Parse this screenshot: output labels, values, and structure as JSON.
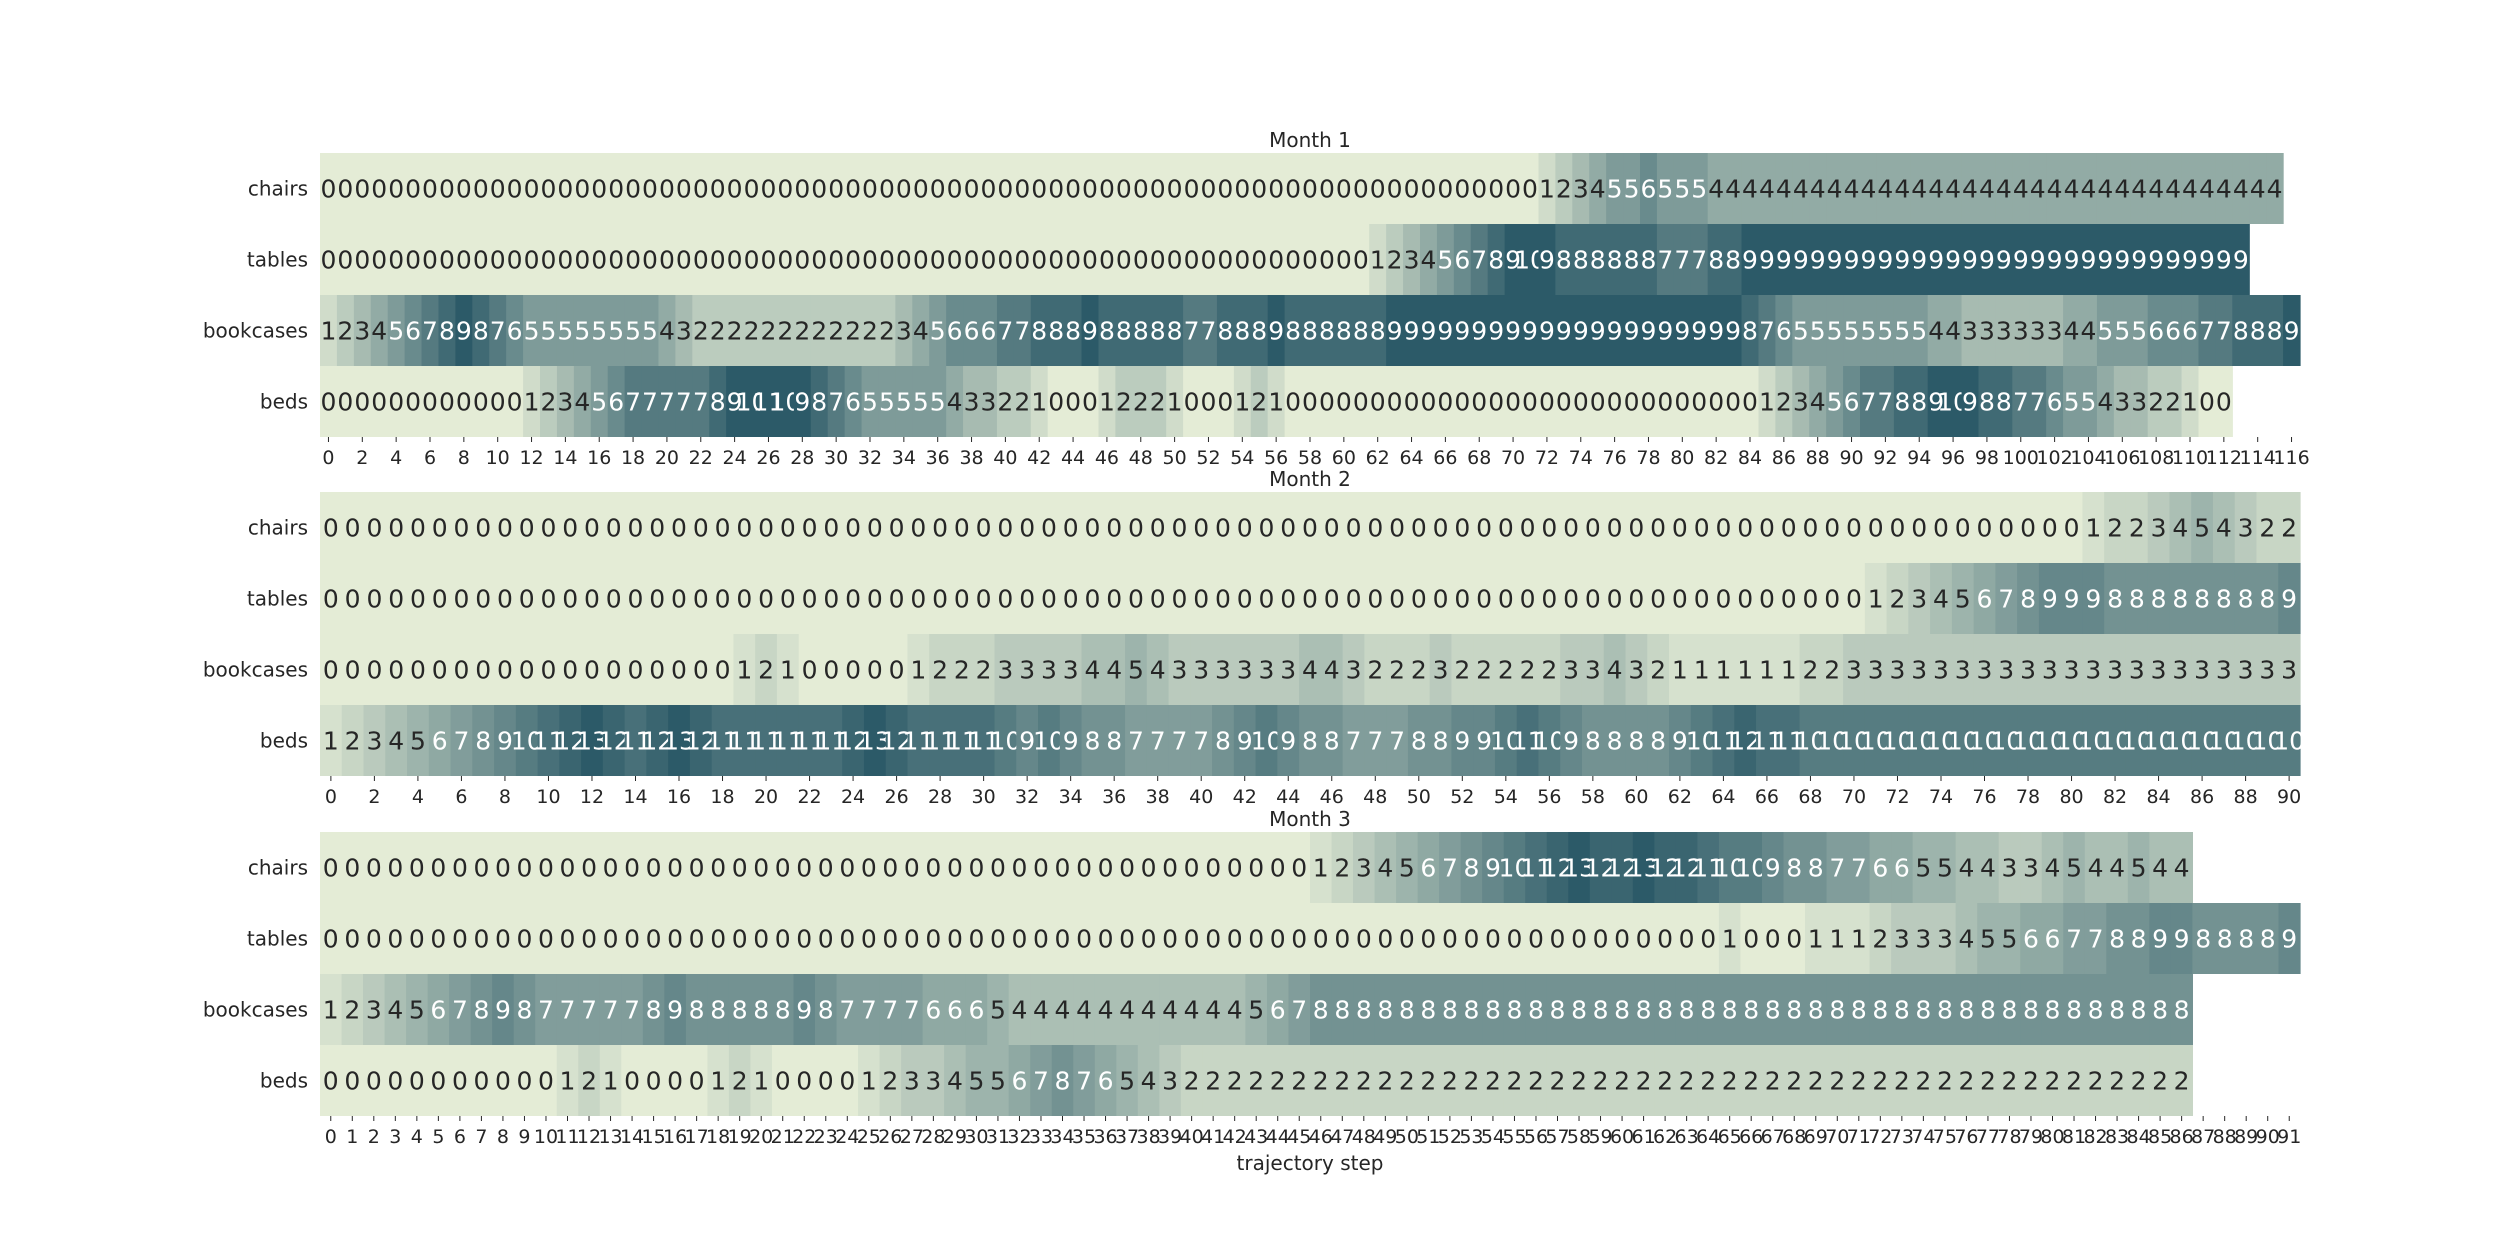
{
  "chart_data": [
    {
      "type": "heatmap",
      "title": "Month 1",
      "rows": [
        "chairs",
        "tables",
        "bookcases",
        "beds"
      ],
      "x": "0..113",
      "vmax": 9,
      "values": [
        [
          0,
          0,
          0,
          0,
          0,
          0,
          0,
          0,
          0,
          0,
          0,
          0,
          0,
          0,
          0,
          0,
          0,
          0,
          0,
          0,
          0,
          0,
          0,
          0,
          0,
          0,
          0,
          0,
          0,
          0,
          0,
          0,
          0,
          0,
          0,
          0,
          0,
          0,
          0,
          0,
          0,
          0,
          0,
          0,
          0,
          0,
          0,
          0,
          0,
          0,
          0,
          0,
          0,
          0,
          0,
          0,
          0,
          0,
          0,
          0,
          0,
          0,
          0,
          0,
          0,
          0,
          0,
          0,
          0,
          0,
          0,
          0,
          1,
          2,
          3,
          4,
          5,
          5,
          6,
          5,
          5,
          5,
          4,
          4,
          4,
          4,
          4,
          4,
          4,
          4,
          4,
          4,
          4,
          4,
          4,
          4,
          4,
          4,
          4,
          4,
          4,
          4,
          4,
          4,
          4,
          4,
          4,
          4,
          4,
          4,
          4,
          4,
          4,
          4,
          4,
          4
        ],
        [
          0,
          0,
          0,
          0,
          0,
          0,
          0,
          0,
          0,
          0,
          0,
          0,
          0,
          0,
          0,
          0,
          0,
          0,
          0,
          0,
          0,
          0,
          0,
          0,
          0,
          0,
          0,
          0,
          0,
          0,
          0,
          0,
          0,
          0,
          0,
          0,
          0,
          0,
          0,
          0,
          0,
          0,
          0,
          0,
          0,
          0,
          0,
          0,
          0,
          0,
          0,
          0,
          0,
          0,
          0,
          0,
          0,
          0,
          0,
          0,
          0,
          0,
          1,
          2,
          3,
          4,
          5,
          6,
          7,
          8,
          9,
          10,
          9,
          8,
          8,
          8,
          8,
          8,
          8,
          7,
          7,
          7,
          8,
          8,
          9,
          9,
          9,
          9,
          9,
          9,
          9,
          9,
          9,
          9,
          9,
          9,
          9,
          9,
          9,
          9,
          9,
          9,
          9,
          9,
          9,
          9,
          9,
          9,
          9,
          9,
          9,
          9,
          9,
          9
        ],
        [
          1,
          2,
          3,
          4,
          5,
          6,
          7,
          8,
          9,
          8,
          7,
          6,
          5,
          5,
          5,
          5,
          5,
          5,
          5,
          5,
          4,
          3,
          2,
          2,
          2,
          2,
          2,
          2,
          2,
          2,
          2,
          2,
          2,
          2,
          3,
          4,
          5,
          6,
          6,
          6,
          7,
          7,
          8,
          8,
          8,
          9,
          8,
          8,
          8,
          8,
          8,
          7,
          7,
          8,
          8,
          8,
          9,
          8,
          8,
          8,
          8,
          8,
          8,
          9,
          9,
          9,
          9,
          9,
          9,
          9,
          9,
          9,
          9,
          9,
          9,
          9,
          9,
          9,
          9,
          9,
          9,
          9,
          9,
          9,
          8,
          7,
          6,
          5,
          5,
          5,
          5,
          5,
          5,
          5,
          5,
          4,
          4,
          3,
          3,
          3,
          3,
          3,
          3,
          4,
          4,
          5,
          5,
          5,
          6,
          6,
          6,
          7,
          7,
          8,
          8,
          8,
          9
        ],
        [
          0,
          0,
          0,
          0,
          0,
          0,
          0,
          0,
          0,
          0,
          0,
          0,
          1,
          2,
          3,
          4,
          5,
          6,
          7,
          7,
          7,
          7,
          7,
          8,
          9,
          10,
          11,
          10,
          9,
          8,
          7,
          6,
          5,
          5,
          5,
          5,
          5,
          4,
          3,
          3,
          2,
          2,
          1,
          0,
          0,
          0,
          1,
          2,
          2,
          2,
          1,
          0,
          0,
          0,
          1,
          2,
          1,
          0,
          0,
          0,
          0,
          0,
          0,
          0,
          0,
          0,
          0,
          0,
          0,
          0,
          0,
          0,
          0,
          0,
          0,
          0,
          0,
          0,
          0,
          0,
          0,
          0,
          0,
          0,
          0,
          1,
          2,
          3,
          4,
          5,
          6,
          7,
          7,
          8,
          8,
          9,
          10,
          9,
          8,
          8,
          7,
          7,
          6,
          5,
          5,
          4,
          3,
          3,
          2,
          2,
          1,
          0,
          0
        ]
      ]
    },
    {
      "type": "heatmap",
      "title": "Month 2",
      "rows": [
        "chairs",
        "tables",
        "bookcases",
        "beds"
      ],
      "x": "0..89",
      "vmax": 13,
      "values": [
        [
          0,
          0,
          0,
          0,
          0,
          0,
          0,
          0,
          0,
          0,
          0,
          0,
          0,
          0,
          0,
          0,
          0,
          0,
          0,
          0,
          0,
          0,
          0,
          0,
          0,
          0,
          0,
          0,
          0,
          0,
          0,
          0,
          0,
          0,
          0,
          0,
          0,
          0,
          0,
          0,
          0,
          0,
          0,
          0,
          0,
          0,
          0,
          0,
          0,
          0,
          0,
          0,
          0,
          0,
          0,
          0,
          0,
          0,
          0,
          0,
          0,
          0,
          0,
          0,
          0,
          0,
          0,
          0,
          0,
          0,
          0,
          0,
          0,
          0,
          0,
          0,
          0,
          0,
          0,
          0,
          0,
          1,
          2,
          2,
          3,
          4,
          5,
          4,
          3,
          2,
          2
        ],
        [
          0,
          0,
          0,
          0,
          0,
          0,
          0,
          0,
          0,
          0,
          0,
          0,
          0,
          0,
          0,
          0,
          0,
          0,
          0,
          0,
          0,
          0,
          0,
          0,
          0,
          0,
          0,
          0,
          0,
          0,
          0,
          0,
          0,
          0,
          0,
          0,
          0,
          0,
          0,
          0,
          0,
          0,
          0,
          0,
          0,
          0,
          0,
          0,
          0,
          0,
          0,
          0,
          0,
          0,
          0,
          0,
          0,
          0,
          0,
          0,
          0,
          0,
          0,
          0,
          0,
          0,
          0,
          0,
          0,
          0,
          0,
          1,
          2,
          3,
          4,
          5,
          6,
          7,
          8,
          9,
          9,
          9,
          8,
          8,
          8,
          8,
          8,
          8,
          8,
          8,
          9
        ],
        [
          0,
          0,
          0,
          0,
          0,
          0,
          0,
          0,
          0,
          0,
          0,
          0,
          0,
          0,
          0,
          0,
          0,
          0,
          0,
          1,
          2,
          1,
          0,
          0,
          0,
          0,
          0,
          1,
          2,
          2,
          2,
          3,
          3,
          3,
          3,
          4,
          4,
          5,
          4,
          3,
          3,
          3,
          3,
          3,
          3,
          4,
          4,
          3,
          2,
          2,
          2,
          3,
          2,
          2,
          2,
          2,
          2,
          3,
          3,
          4,
          3,
          2,
          1,
          1,
          1,
          1,
          1,
          1,
          2,
          2,
          3,
          3,
          3,
          3,
          3,
          3,
          3,
          3,
          3,
          3,
          3,
          3,
          3,
          3,
          3,
          3,
          3,
          3,
          3,
          3,
          3
        ],
        [
          1,
          2,
          3,
          4,
          5,
          6,
          7,
          8,
          9,
          10,
          11,
          12,
          13,
          12,
          11,
          12,
          13,
          12,
          11,
          11,
          11,
          11,
          11,
          11,
          12,
          13,
          12,
          11,
          11,
          11,
          11,
          10,
          9,
          10,
          9,
          8,
          8,
          7,
          7,
          7,
          7,
          8,
          9,
          10,
          9,
          8,
          8,
          7,
          7,
          7,
          8,
          8,
          9,
          9,
          10,
          11,
          10,
          9,
          8,
          8,
          8,
          8,
          9,
          10,
          11,
          12,
          11,
          11,
          10,
          10,
          10,
          10,
          10,
          10,
          10,
          10,
          10,
          10,
          10,
          10,
          10,
          10,
          10,
          10,
          10,
          10,
          10,
          10,
          10,
          10,
          10
        ]
      ]
    },
    {
      "type": "heatmap",
      "title": "Month 3",
      "rows": [
        "chairs",
        "tables",
        "bookcases",
        "beds"
      ],
      "x": "0..86",
      "vmax": 13,
      "xlabel": "trajectory step",
      "values": [
        [
          0,
          0,
          0,
          0,
          0,
          0,
          0,
          0,
          0,
          0,
          0,
          0,
          0,
          0,
          0,
          0,
          0,
          0,
          0,
          0,
          0,
          0,
          0,
          0,
          0,
          0,
          0,
          0,
          0,
          0,
          0,
          0,
          0,
          0,
          0,
          0,
          0,
          0,
          0,
          0,
          0,
          0,
          0,
          0,
          0,
          0,
          1,
          2,
          3,
          4,
          5,
          6,
          7,
          8,
          9,
          10,
          11,
          12,
          13,
          12,
          12,
          13,
          12,
          12,
          11,
          10,
          10,
          9,
          8,
          8,
          7,
          7,
          6,
          6,
          5,
          5,
          4,
          4,
          3,
          3,
          4,
          5,
          4,
          4,
          5,
          4,
          4
        ],
        [
          0,
          0,
          0,
          0,
          0,
          0,
          0,
          0,
          0,
          0,
          0,
          0,
          0,
          0,
          0,
          0,
          0,
          0,
          0,
          0,
          0,
          0,
          0,
          0,
          0,
          0,
          0,
          0,
          0,
          0,
          0,
          0,
          0,
          0,
          0,
          0,
          0,
          0,
          0,
          0,
          0,
          0,
          0,
          0,
          0,
          0,
          0,
          0,
          0,
          0,
          0,
          0,
          0,
          0,
          0,
          0,
          0,
          0,
          0,
          0,
          0,
          0,
          0,
          0,
          0,
          1,
          0,
          0,
          0,
          1,
          1,
          1,
          2,
          3,
          3,
          3,
          4,
          5,
          5,
          6,
          6,
          7,
          7,
          8,
          8,
          9,
          9,
          8,
          8,
          8,
          8,
          9
        ],
        [
          1,
          2,
          3,
          4,
          5,
          6,
          7,
          8,
          9,
          8,
          7,
          7,
          7,
          7,
          7,
          8,
          9,
          8,
          8,
          8,
          8,
          8,
          9,
          8,
          7,
          7,
          7,
          7,
          6,
          6,
          6,
          5,
          4,
          4,
          4,
          4,
          4,
          4,
          4,
          4,
          4,
          4,
          4,
          5,
          6,
          7,
          8,
          8,
          8,
          8,
          8,
          8,
          8,
          8,
          8,
          8,
          8,
          8,
          8,
          8,
          8,
          8,
          8,
          8,
          8,
          8,
          8,
          8,
          8,
          8,
          8,
          8,
          8,
          8,
          8,
          8,
          8,
          8,
          8,
          8,
          8,
          8,
          8,
          8,
          8,
          8,
          8
        ],
        [
          0,
          0,
          0,
          0,
          0,
          0,
          0,
          0,
          0,
          0,
          0,
          1,
          2,
          1,
          0,
          0,
          0,
          0,
          1,
          2,
          1,
          0,
          0,
          0,
          0,
          1,
          2,
          3,
          3,
          4,
          5,
          5,
          6,
          7,
          8,
          7,
          6,
          5,
          4,
          3,
          2,
          2,
          2,
          2,
          2,
          2,
          2,
          2,
          2,
          2,
          2,
          2,
          2,
          2,
          2,
          2,
          2,
          2,
          2,
          2,
          2,
          2,
          2,
          2,
          2,
          2,
          2,
          2,
          2,
          2,
          2,
          2,
          2,
          2,
          2,
          2,
          2,
          2,
          2,
          2,
          2,
          2,
          2,
          2,
          2,
          2,
          2
        ]
      ]
    }
  ],
  "colormap": {
    "low": "#e4ecd6",
    "high": "#2c5a68"
  }
}
